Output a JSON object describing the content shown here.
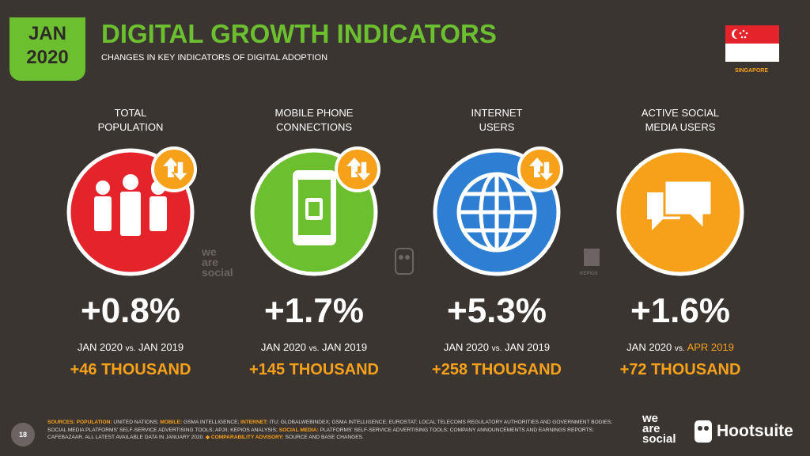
{
  "header": {
    "badge": [
      "JAN",
      "2020"
    ],
    "title": "DIGITAL GROWTH INDICATORS",
    "subtitle": "CHANGES IN KEY INDICATORS OF DIGITAL ADOPTION",
    "country": "SINGAPORE"
  },
  "indicators": [
    {
      "label": [
        "TOTAL",
        "POPULATION"
      ],
      "color": "#e4232b",
      "change": "+0.8%",
      "from": "JAN 2020",
      "vs": "vs.",
      "to": "JAN 2019",
      "to_color": "#ffffff",
      "absolute": "+46 THOUSAND"
    },
    {
      "label": [
        "MOBILE PHONE",
        "CONNECTIONS"
      ],
      "color": "#6cbf2f",
      "change": "+1.7%",
      "from": "JAN 2020",
      "vs": "vs.",
      "to": "JAN 2019",
      "to_color": "#ffffff",
      "absolute": "+145 THOUSAND"
    },
    {
      "label": [
        "INTERNET",
        "USERS"
      ],
      "color": "#2e7fd4",
      "change": "+5.3%",
      "from": "JAN 2020",
      "vs": "vs.",
      "to": "JAN 2019",
      "to_color": "#ffffff",
      "absolute": "+258 THOUSAND"
    },
    {
      "label": [
        "ACTIVE SOCIAL",
        "MEDIA USERS"
      ],
      "color": "#f7a11a",
      "change": "+1.6%",
      "from": "JAN 2020",
      "vs": "vs.",
      "to": "APR 2019",
      "to_color": "#f7a11a",
      "absolute": "+72 THOUSAND"
    }
  ],
  "watermarks": {
    "we_are_social": [
      "we",
      "are",
      "social"
    ],
    "kepios": "KEPIOS"
  },
  "footer": {
    "page": "18",
    "sources_heading": "SOURCES:",
    "sources": [
      {
        "label": "POPULATION:",
        "text": " UNITED NATIONS; "
      },
      {
        "label": "MOBILE:",
        "text": " GSMA INTELLIGENCE; "
      },
      {
        "label": "INTERNET:",
        "text": " ITU; GLOBALWEBINDEX; GSMA INTELLIGENCE; EUROSTAT; LOCAL TELECOMS REGULATORY AUTHORITIES AND GOVERNMENT BODIES; SOCIAL MEDIA PLATFORMS' SELF-SERVICE ADVERTISING TOOLS; APJII; KEPIOS ANALYSIS; "
      },
      {
        "label": "SOCIAL MEDIA:",
        "text": " PLATFORMS' SELF-SERVICE ADVERTISING TOOLS; COMPANY ANNOUNCEMENTS AND EARNINGS REPORTS; CAFEBAZAAR. ALL LATEST AVAILABLE DATA IN JANUARY 2020. "
      },
      {
        "label": "◆ COMPARABILITY ADVISORY:",
        "text": " SOURCE AND BASE CHANGES."
      }
    ],
    "brand_was": [
      "we",
      "are",
      "social"
    ],
    "brand_hs": "Hootsuite"
  }
}
